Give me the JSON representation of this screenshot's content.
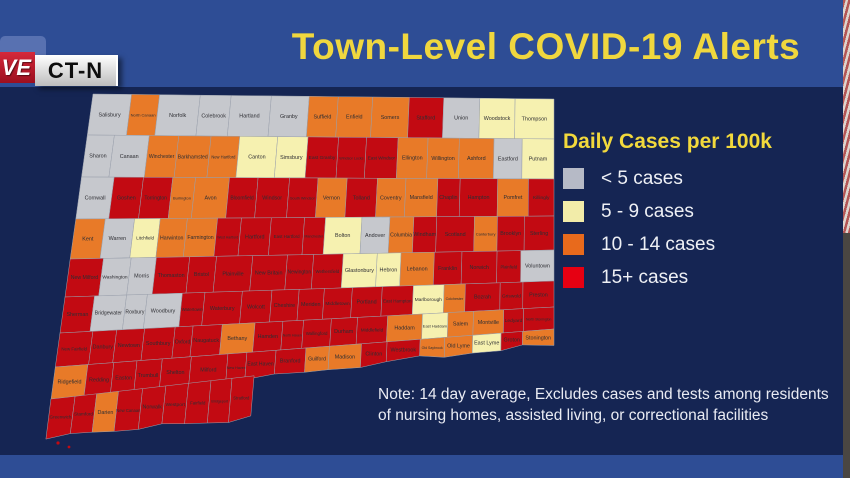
{
  "broadcast": {
    "live_label": "VE",
    "station_label": "CT-N"
  },
  "title": "Town-Level COVID-19 Alerts",
  "legend": {
    "title": "Daily Cases per 100k",
    "items": [
      {
        "label": "< 5 cases",
        "color": "#b6bac6"
      },
      {
        "label": "5 - 9 cases",
        "color": "#f2eca9"
      },
      {
        "label": "10 - 14 cases",
        "color": "#e86a1c"
      },
      {
        "label": "15+ cases",
        "color": "#e60012"
      }
    ]
  },
  "note": {
    "line1": "Note: 14 day average, Excludes cases and tests among residents",
    "line2": "of nursing homes, assisted living, or correctional facilities"
  },
  "map": {
    "colors": {
      "g": "#c6c8cd",
      "y": "#f6f1b0",
      "o": "#e87a28",
      "r": "#c20a12"
    },
    "rows": [
      {
        "towns": [
          {
            "n": "Salisbury",
            "c": "g"
          },
          {
            "n": "North Canaan",
            "c": "o"
          },
          {
            "n": "Norfolk",
            "c": "g"
          },
          {
            "n": "Colebrook",
            "c": "g"
          },
          {
            "n": "Hartland",
            "c": "g"
          },
          {
            "n": "Granby",
            "c": "g"
          },
          {
            "n": "Suffield",
            "c": "o"
          },
          {
            "n": "Enfield",
            "c": "o"
          },
          {
            "n": "Somers",
            "c": "o"
          },
          {
            "n": "Stafford",
            "c": "r"
          },
          {
            "n": "Union",
            "c": "g"
          },
          {
            "n": "Woodstock",
            "c": "y"
          },
          {
            "n": "Thompson",
            "c": "y"
          }
        ]
      },
      {
        "towns": [
          {
            "n": "Sharon",
            "c": "g"
          },
          {
            "n": "Canaan",
            "c": "g"
          },
          {
            "n": "Winchester",
            "c": "o"
          },
          {
            "n": "Barkhamsted",
            "c": "o"
          },
          {
            "n": "New Hartford",
            "c": "o"
          },
          {
            "n": "Canton",
            "c": "y"
          },
          {
            "n": "Simsbury",
            "c": "y"
          },
          {
            "n": "East Granby",
            "c": "r"
          },
          {
            "n": "Windsor Locks",
            "c": "r"
          },
          {
            "n": "East Windsor",
            "c": "r"
          },
          {
            "n": "Ellington",
            "c": "o"
          },
          {
            "n": "Willington",
            "c": "o"
          },
          {
            "n": "Ashford",
            "c": "o"
          },
          {
            "n": "Eastford",
            "c": "g"
          },
          {
            "n": "Putnam",
            "c": "y"
          }
        ]
      },
      {
        "towns": [
          {
            "n": "Cornwall",
            "c": "g"
          },
          {
            "n": "Goshen",
            "c": "r"
          },
          {
            "n": "Torrington",
            "c": "r"
          },
          {
            "n": "Burlington",
            "c": "o"
          },
          {
            "n": "Avon",
            "c": "o"
          },
          {
            "n": "Bloomfield",
            "c": "r"
          },
          {
            "n": "Windsor",
            "c": "r"
          },
          {
            "n": "South Windsor",
            "c": "r"
          },
          {
            "n": "Vernon",
            "c": "o"
          },
          {
            "n": "Tolland",
            "c": "r"
          },
          {
            "n": "Coventry",
            "c": "o"
          },
          {
            "n": "Mansfield",
            "c": "o"
          },
          {
            "n": "Chaplin",
            "c": "r"
          },
          {
            "n": "Hampton",
            "c": "r"
          },
          {
            "n": "Pomfret",
            "c": "o"
          },
          {
            "n": "Killingly",
            "c": "r"
          }
        ]
      },
      {
        "towns": [
          {
            "n": "Kent",
            "c": "o"
          },
          {
            "n": "Warren",
            "c": "g"
          },
          {
            "n": "Litchfield",
            "c": "y"
          },
          {
            "n": "Harwinton",
            "c": "o"
          },
          {
            "n": "Farmington",
            "c": "o"
          },
          {
            "n": "West Hartford",
            "c": "r"
          },
          {
            "n": "Hartford",
            "c": "r"
          },
          {
            "n": "East Hartford",
            "c": "r"
          },
          {
            "n": "Manchester",
            "c": "r"
          },
          {
            "n": "Bolton",
            "c": "y"
          },
          {
            "n": "Andover",
            "c": "g"
          },
          {
            "n": "Columbia",
            "c": "o"
          },
          {
            "n": "Windham",
            "c": "r"
          },
          {
            "n": "Scotland",
            "c": "r"
          },
          {
            "n": "Canterbury",
            "c": "o"
          },
          {
            "n": "Brooklyn",
            "c": "r"
          },
          {
            "n": "Sterling",
            "c": "r"
          }
        ]
      },
      {
        "towns": [
          {
            "n": "New Milford",
            "c": "r"
          },
          {
            "n": "Washington",
            "c": "g"
          },
          {
            "n": "Morris",
            "c": "g"
          },
          {
            "n": "Thomaston",
            "c": "r"
          },
          {
            "n": "Bristol",
            "c": "r"
          },
          {
            "n": "Plainville",
            "c": "r"
          },
          {
            "n": "New Britain",
            "c": "r"
          },
          {
            "n": "Newington",
            "c": "r"
          },
          {
            "n": "Wethersfield",
            "c": "r"
          },
          {
            "n": "Glastonbury",
            "c": "y"
          },
          {
            "n": "Hebron",
            "c": "y"
          },
          {
            "n": "Lebanon",
            "c": "o"
          },
          {
            "n": "Franklin",
            "c": "r"
          },
          {
            "n": "Norwich",
            "c": "r"
          },
          {
            "n": "Plainfield",
            "c": "r"
          },
          {
            "n": "Voluntown",
            "c": "g"
          }
        ]
      },
      {
        "towns": [
          {
            "n": "Sherman",
            "c": "r"
          },
          {
            "n": "Bridgewater",
            "c": "g"
          },
          {
            "n": "Roxbury",
            "c": "g"
          },
          {
            "n": "Woodbury",
            "c": "g"
          },
          {
            "n": "Watertown",
            "c": "r"
          },
          {
            "n": "Waterbury",
            "c": "r"
          },
          {
            "n": "Wolcott",
            "c": "r"
          },
          {
            "n": "Cheshire",
            "c": "r"
          },
          {
            "n": "Meriden",
            "c": "r"
          },
          {
            "n": "Middletown",
            "c": "r"
          },
          {
            "n": "Portland",
            "c": "r"
          },
          {
            "n": "East Hampton",
            "c": "r"
          },
          {
            "n": "Marlborough",
            "c": "y"
          },
          {
            "n": "Colchester",
            "c": "o"
          },
          {
            "n": "Bozrah",
            "c": "r"
          },
          {
            "n": "Griswold",
            "c": "r"
          },
          {
            "n": "Preston",
            "c": "r"
          }
        ]
      },
      {
        "towns": [
          {
            "n": "New Fairfield",
            "c": "r"
          },
          {
            "n": "Danbury",
            "c": "r"
          },
          {
            "n": "Newtown",
            "c": "r"
          },
          {
            "n": "Southbury",
            "c": "r"
          },
          {
            "n": "Oxford",
            "c": "r"
          },
          {
            "n": "Naugatuck",
            "c": "r"
          },
          {
            "n": "Bethany",
            "c": "o"
          },
          {
            "n": "Hamden",
            "c": "r"
          },
          {
            "n": "North Haven",
            "c": "r"
          },
          {
            "n": "Wallingford",
            "c": "r"
          },
          {
            "n": "Durham",
            "c": "r"
          },
          {
            "n": "Middlefield",
            "c": "r"
          },
          {
            "n": "Haddam",
            "c": "o"
          },
          {
            "n": "East Haddam",
            "c": "y"
          },
          {
            "n": "Salem",
            "c": "o"
          },
          {
            "n": "Montville",
            "c": "o"
          },
          {
            "n": "Ledyard",
            "c": "r"
          },
          {
            "n": "North Stonington",
            "c": "r"
          }
        ]
      },
      {
        "towns": [
          {
            "n": "Ridgefield",
            "c": "o"
          },
          {
            "n": "Redding",
            "c": "r"
          },
          {
            "n": "Easton",
            "c": "r"
          },
          {
            "n": "Trumbull",
            "c": "r"
          },
          {
            "n": "Shelton",
            "c": "r"
          },
          {
            "n": "Milford",
            "c": "r"
          },
          {
            "n": "New Haven",
            "c": "r"
          },
          {
            "n": "East Haven",
            "c": "r"
          },
          {
            "n": "Branford",
            "c": "r"
          },
          {
            "n": "Guilford",
            "c": "o"
          },
          {
            "n": "Madison",
            "c": "o"
          },
          {
            "n": "Clinton",
            "c": "r"
          },
          {
            "n": "Westbrook",
            "c": "r"
          },
          {
            "n": "Old Saybrook",
            "c": "o"
          },
          {
            "n": "Old Lyme",
            "c": "o"
          },
          {
            "n": "East Lyme",
            "c": "y"
          },
          {
            "n": "Groton",
            "c": "r"
          },
          {
            "n": "Stonington",
            "c": "o"
          }
        ]
      },
      {
        "panhandle": true,
        "towns": [
          {
            "n": "Greenwich",
            "c": "r"
          },
          {
            "n": "Stamford",
            "c": "r"
          },
          {
            "n": "Darien",
            "c": "o"
          },
          {
            "n": "New Canaan",
            "c": "r"
          },
          {
            "n": "Norwalk",
            "c": "r"
          },
          {
            "n": "Westport",
            "c": "r"
          },
          {
            "n": "Fairfield",
            "c": "r"
          },
          {
            "n": "Bridgeport",
            "c": "r"
          },
          {
            "n": "Stratford",
            "c": "r"
          }
        ]
      }
    ]
  }
}
